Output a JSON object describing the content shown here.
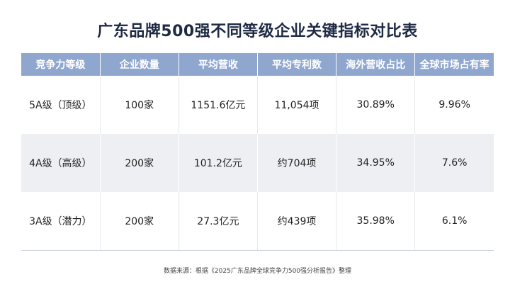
{
  "title": "广东品牌500强不同等级企业关键指标对比表",
  "source": "数据来源：根据《2025广东品牌全球竞争力500强分析报告》整理",
  "colors": {
    "header_bg": "#8fa7cf",
    "stripe_bg": "#edeff2",
    "title": "#1f2a44"
  },
  "chart_data": {
    "type": "table",
    "title": "广东品牌500强不同等级企业关键指标对比表",
    "columns": [
      "竞争力等级",
      "企业数量",
      "平均营收",
      "平均专利数",
      "海外营收占比",
      "全球市场占有率"
    ],
    "rows": [
      [
        "5A级（顶级）",
        "100家",
        "1151.6亿元",
        "11,054项",
        "30.89%",
        "9.96%"
      ],
      [
        "4A级（高级）",
        "200家",
        "101.2亿元",
        "约704项",
        "34.95%",
        "7.6%"
      ],
      [
        "3A级（潜力）",
        "200家",
        "27.3亿元",
        "约439项",
        "35.98%",
        "6.1%"
      ]
    ]
  }
}
